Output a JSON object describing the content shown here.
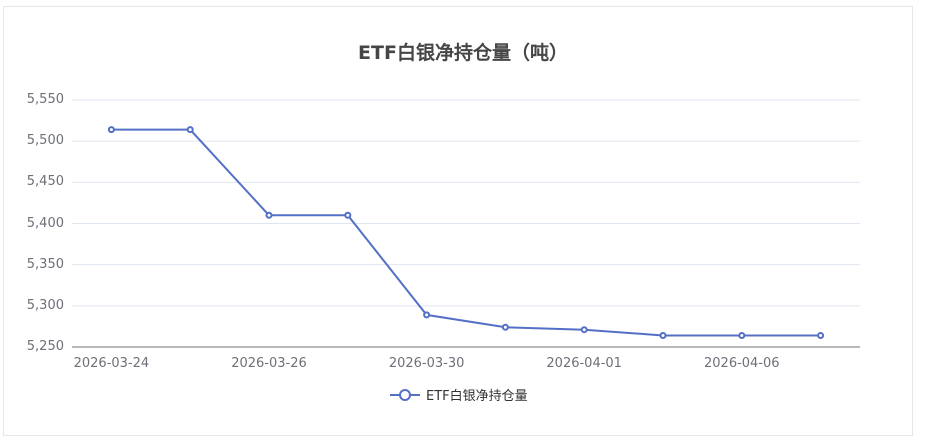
{
  "chart_data": {
    "type": "line",
    "title": "ETF白银净持仓量（吨）",
    "xlabel": "",
    "ylabel": "",
    "categories": [
      "2026-03-24",
      "2026-03-25",
      "2026-03-26",
      "2026-03-27",
      "2026-03-30",
      "2026-03-31",
      "2026-04-01",
      "2026-04-02",
      "2026-04-06",
      "2026-04-07"
    ],
    "visible_x_ticks": [
      "2026-03-24",
      "2026-03-26",
      "2026-03-30",
      "2026-04-01",
      "2026-04-06"
    ],
    "series": [
      {
        "name": "ETF白银净持仓量",
        "values": [
          5514,
          5514,
          5410,
          5410,
          5289,
          5274,
          5271,
          5264,
          5264,
          5264
        ],
        "color": "#5470c6"
      }
    ],
    "y_ticks": [
      "5,550",
      "5,500",
      "5,450",
      "5,400",
      "5,350",
      "5,300",
      "5,250"
    ],
    "ylim": [
      5250,
      5550
    ],
    "grid": true,
    "legend_position": "bottom"
  },
  "title": "ETF白银净持仓量（吨）",
  "legend": {
    "label": "ETF白银净持仓量"
  }
}
